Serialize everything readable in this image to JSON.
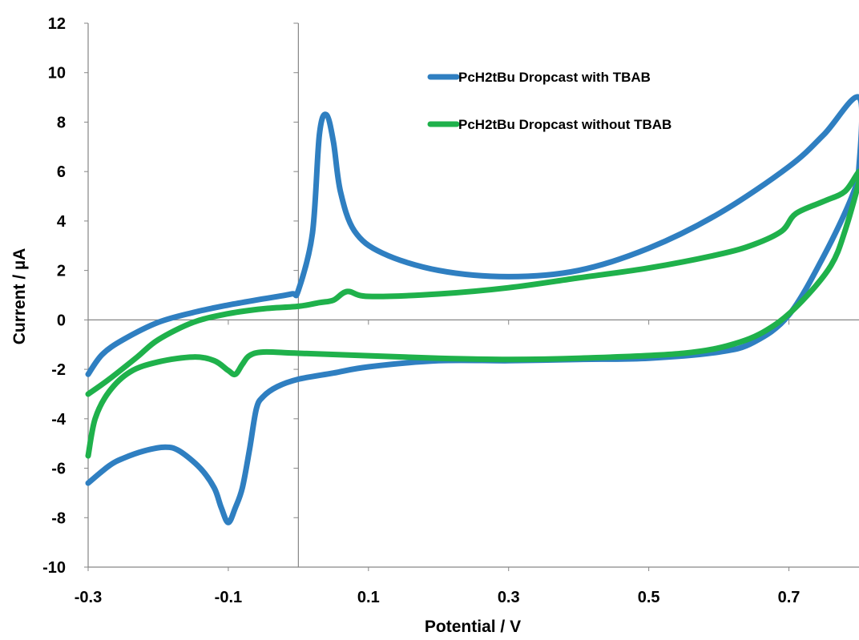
{
  "chart_data": {
    "type": "line",
    "xlabel": "Potential / V",
    "ylabel": "Current / µA",
    "xlim": [
      -0.3,
      0.8
    ],
    "ylim": [
      -10,
      12
    ],
    "x_ticks": [
      -0.3,
      -0.1,
      0.1,
      0.3,
      0.5,
      0.7
    ],
    "x_tick_labels": [
      "-0.3",
      "-0.1",
      "0.1",
      "0.3",
      "0.5",
      "0.7"
    ],
    "y_ticks": [
      -10,
      -8,
      -6,
      -4,
      -2,
      0,
      2,
      4,
      6,
      8,
      10,
      12
    ],
    "y_tick_labels": [
      "-10",
      "-8",
      "-6",
      "-4",
      "-2",
      "0",
      "2",
      "4",
      "6",
      "8",
      "10",
      "12"
    ],
    "grid": false,
    "legend_position": "top-center",
    "series": [
      {
        "name": "PcH2tBu Dropcast with TBAB",
        "color": "#2F7FC1",
        "points": [
          [
            -0.3,
            -2.2
          ],
          [
            -0.28,
            -1.4
          ],
          [
            -0.25,
            -0.8
          ],
          [
            -0.2,
            -0.1
          ],
          [
            -0.15,
            0.3
          ],
          [
            -0.1,
            0.6
          ],
          [
            -0.05,
            0.85
          ],
          [
            -0.01,
            1.05
          ],
          [
            0.0,
            1.2
          ],
          [
            0.02,
            3.5
          ],
          [
            0.03,
            7.5
          ],
          [
            0.04,
            8.3
          ],
          [
            0.05,
            7.2
          ],
          [
            0.06,
            5.2
          ],
          [
            0.08,
            3.6
          ],
          [
            0.12,
            2.7
          ],
          [
            0.2,
            2.0
          ],
          [
            0.3,
            1.75
          ],
          [
            0.4,
            2.0
          ],
          [
            0.5,
            2.9
          ],
          [
            0.6,
            4.3
          ],
          [
            0.7,
            6.2
          ],
          [
            0.75,
            7.5
          ],
          [
            0.8,
            9.0
          ],
          [
            0.8,
            6.2
          ],
          [
            0.79,
            5.0
          ],
          [
            0.75,
            2.6
          ],
          [
            0.7,
            0.2
          ],
          [
            0.65,
            -0.9
          ],
          [
            0.6,
            -1.3
          ],
          [
            0.5,
            -1.55
          ],
          [
            0.4,
            -1.6
          ],
          [
            0.3,
            -1.65
          ],
          [
            0.2,
            -1.65
          ],
          [
            0.1,
            -1.9
          ],
          [
            0.05,
            -2.15
          ],
          [
            0.0,
            -2.4
          ],
          [
            -0.03,
            -2.7
          ],
          [
            -0.05,
            -3.1
          ],
          [
            -0.06,
            -3.6
          ],
          [
            -0.07,
            -5.3
          ],
          [
            -0.08,
            -6.8
          ],
          [
            -0.09,
            -7.6
          ],
          [
            -0.1,
            -8.2
          ],
          [
            -0.11,
            -7.6
          ],
          [
            -0.12,
            -6.8
          ],
          [
            -0.14,
            -6.0
          ],
          [
            -0.17,
            -5.3
          ],
          [
            -0.19,
            -5.15
          ],
          [
            -0.22,
            -5.3
          ],
          [
            -0.25,
            -5.6
          ],
          [
            -0.27,
            -5.9
          ],
          [
            -0.3,
            -6.6
          ]
        ]
      },
      {
        "name": "PcH2tBu Dropcast without TBAB",
        "color": "#1FB14B",
        "points": [
          [
            -0.3,
            -3.0
          ],
          [
            -0.27,
            -2.4
          ],
          [
            -0.23,
            -1.5
          ],
          [
            -0.2,
            -0.8
          ],
          [
            -0.15,
            -0.1
          ],
          [
            -0.1,
            0.25
          ],
          [
            -0.05,
            0.45
          ],
          [
            0.0,
            0.55
          ],
          [
            0.03,
            0.7
          ],
          [
            0.05,
            0.8
          ],
          [
            0.07,
            1.15
          ],
          [
            0.1,
            0.95
          ],
          [
            0.2,
            1.05
          ],
          [
            0.3,
            1.3
          ],
          [
            0.4,
            1.7
          ],
          [
            0.5,
            2.1
          ],
          [
            0.6,
            2.65
          ],
          [
            0.65,
            3.05
          ],
          [
            0.69,
            3.6
          ],
          [
            0.71,
            4.3
          ],
          [
            0.75,
            4.8
          ],
          [
            0.78,
            5.2
          ],
          [
            0.8,
            6.0
          ],
          [
            0.8,
            5.6
          ],
          [
            0.78,
            3.6
          ],
          [
            0.76,
            2.2
          ],
          [
            0.72,
            0.8
          ],
          [
            0.68,
            -0.2
          ],
          [
            0.63,
            -0.9
          ],
          [
            0.55,
            -1.35
          ],
          [
            0.4,
            -1.55
          ],
          [
            0.3,
            -1.6
          ],
          [
            0.2,
            -1.55
          ],
          [
            0.1,
            -1.45
          ],
          [
            0.0,
            -1.35
          ],
          [
            -0.05,
            -1.3
          ],
          [
            -0.07,
            -1.45
          ],
          [
            -0.08,
            -1.8
          ],
          [
            -0.09,
            -2.2
          ],
          [
            -0.1,
            -2.05
          ],
          [
            -0.12,
            -1.65
          ],
          [
            -0.15,
            -1.5
          ],
          [
            -0.2,
            -1.7
          ],
          [
            -0.24,
            -2.1
          ],
          [
            -0.27,
            -2.9
          ],
          [
            -0.29,
            -4.0
          ],
          [
            -0.3,
            -5.5
          ]
        ]
      }
    ]
  }
}
